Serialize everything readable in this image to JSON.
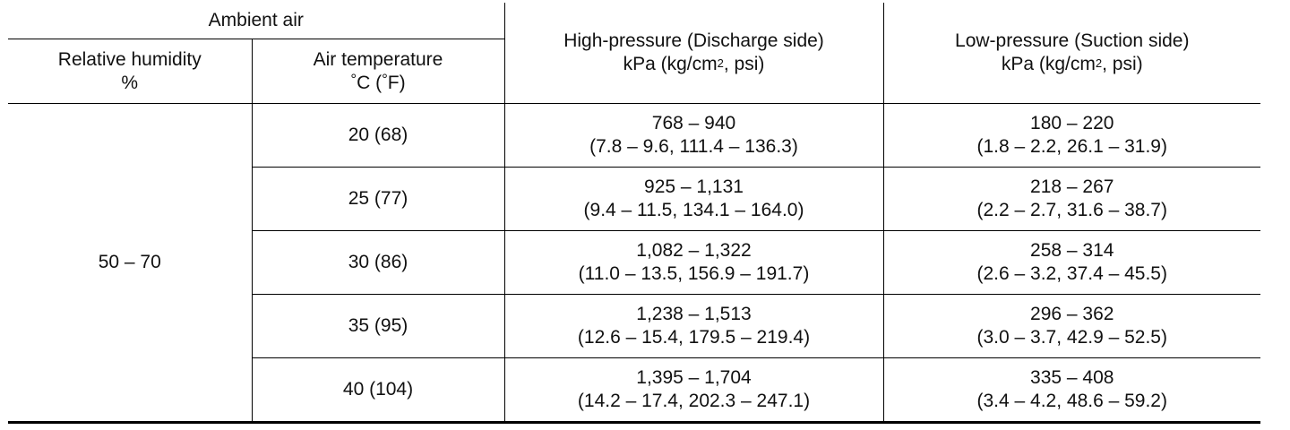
{
  "header": {
    "ambient_air": "Ambient air",
    "humidity_label": "Relative humidity",
    "humidity_unit": "%",
    "temp_label": "Air temperature",
    "temp_unit_c": "C (",
    "temp_unit_f": "F)",
    "high_label": "High-pressure (Discharge side)",
    "low_label": "Low-pressure (Suction side)",
    "pressure_unit_prefix": "kPa (kg/cm",
    "pressure_unit_exp": "2",
    "pressure_unit_suffix": ", psi)",
    "degree_symbol": "°"
  },
  "humidity_value": "50 – 70",
  "rows": [
    {
      "temp": "20 (68)",
      "high_kpa": "768 – 940",
      "high_alt": "(7.8 – 9.6, 111.4 – 136.3)",
      "low_kpa": "180 – 220",
      "low_alt": "(1.8 – 2.2, 26.1 – 31.9)"
    },
    {
      "temp": "25 (77)",
      "high_kpa": "925 – 1,131",
      "high_alt": "(9.4 – 11.5, 134.1 – 164.0)",
      "low_kpa": "218 – 267",
      "low_alt": "(2.2 – 2.7, 31.6 – 38.7)"
    },
    {
      "temp": "30 (86)",
      "high_kpa": "1,082 – 1,322",
      "high_alt": "(11.0 – 13.5, 156.9 – 191.7)",
      "low_kpa": "258 – 314",
      "low_alt": "(2.6 – 3.2, 37.4 – 45.5)"
    },
    {
      "temp": "35 (95)",
      "high_kpa": "1,238 – 1,513",
      "high_alt": "(12.6 – 15.4, 179.5 – 219.4)",
      "low_kpa": "296 – 362",
      "low_alt": "(3.0 – 3.7, 42.9 – 52.5)"
    },
    {
      "temp": "40 (104)",
      "high_kpa": "1,395 – 1,704",
      "high_alt": "(14.2 – 17.4, 202.3 – 247.1)",
      "low_kpa": "335 – 408",
      "low_alt": "(3.4 – 4.2, 48.6 – 59.2)"
    }
  ]
}
